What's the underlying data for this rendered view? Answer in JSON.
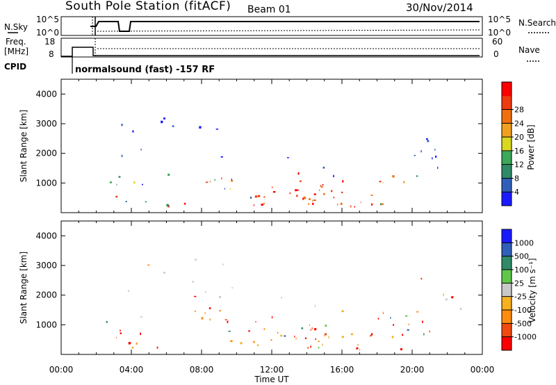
{
  "header": {
    "title": "South Pole Station (fitACF)",
    "beam": "Beam 01",
    "date": "30/Nov/2014"
  },
  "nsky_panel": {
    "label": "N.Sky",
    "right_label": "N.Search",
    "left_ticks": [
      "10^5",
      "10^0"
    ],
    "right_ticks": [
      "10^5",
      "10^0"
    ]
  },
  "freq_panel": {
    "label_line1": "Freq.",
    "label_line2": "[MHz]",
    "right_label": "Nave",
    "left_ticks": [
      "18",
      "8"
    ],
    "right_ticks": [
      "60",
      "0"
    ]
  },
  "cpid": {
    "label": "CPID",
    "program": "normalsound (fast) -157 RF"
  },
  "colors": {
    "power_scale": [
      "#1a1aff",
      "#2f5fb8",
      "#2f8a68",
      "#3ba85a",
      "#d8d820",
      "#f0a020",
      "#f07010",
      "#f03a10",
      "#ff0000"
    ],
    "velocity_scale": [
      "#ff0000",
      "#f04a10",
      "#ff8c10",
      "#f7b020",
      "#c8c8c8",
      "#5fc84a",
      "#2f8a68",
      "#2f5fb8",
      "#1a1aff"
    ]
  },
  "chart_data": [
    {
      "type": "heatmap",
      "name": "power",
      "ylabel": "Slant Range [km]",
      "yticks": [
        "1000",
        "2000",
        "3000",
        "4000"
      ],
      "ylim": [
        0,
        4500
      ],
      "colorbar_label": "Power [dB]",
      "colorbar_ticks": [
        "4",
        "8",
        "12",
        "16",
        "20",
        "24",
        "28"
      ],
      "xlim": [
        "00:00",
        "24:00"
      ]
    },
    {
      "type": "heatmap",
      "name": "velocity",
      "ylabel": "Slant Range [km]",
      "yticks": [
        "1000",
        "2000",
        "3000",
        "4000"
      ],
      "ylim": [
        0,
        4500
      ],
      "colorbar_label": "Velocity [m s⁻¹]",
      "colorbar_ticks": [
        "-1000",
        "-500",
        "-100",
        "-25",
        "25",
        "100",
        "500",
        "1000"
      ],
      "xlim": [
        "00:00",
        "24:00"
      ],
      "xlabel": "Time UT",
      "xticks": [
        "00:00",
        "04:00",
        "08:00",
        "12:00",
        "16:00",
        "20:00",
        "00:00"
      ]
    }
  ]
}
